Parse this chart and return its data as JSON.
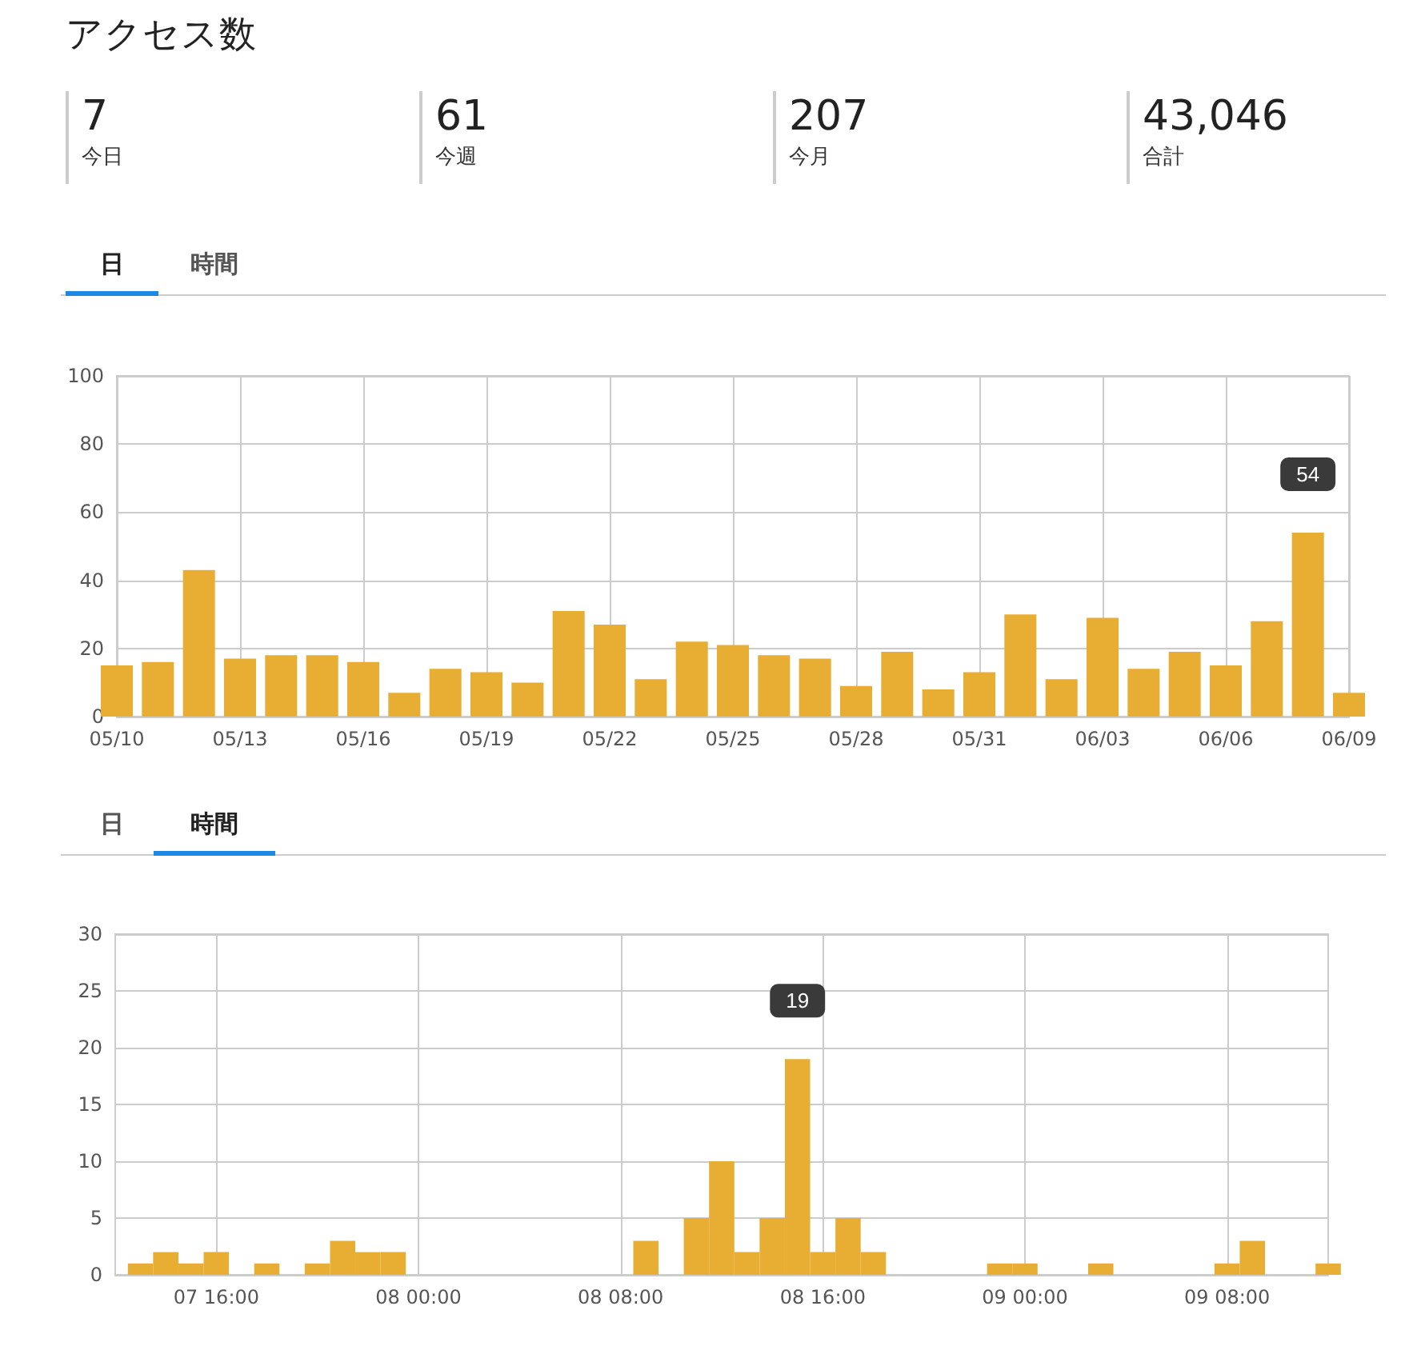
{
  "chart_data": [
    {
      "type": "other",
      "title": "アクセス数",
      "categories": [
        "今日",
        "今週",
        "今月",
        "合計"
      ],
      "value_labels": [
        "7",
        "61",
        "207",
        "43,046"
      ]
    },
    {
      "type": "bar",
      "annotations": [
        "日",
        "時間"
      ],
      "color": "#e8ae33",
      "grid": true,
      "categories": [
        "05/10",
        null,
        null,
        "05/13",
        null,
        null,
        "05/16",
        null,
        null,
        "05/19",
        null,
        null,
        "05/22",
        null,
        null,
        "05/25",
        null,
        null,
        "05/28",
        null,
        null,
        "05/31",
        null,
        null,
        "06/03",
        null,
        null,
        "06/06",
        null,
        null,
        "06/09"
      ],
      "values": [
        15,
        16,
        43,
        17,
        18,
        18,
        16,
        7,
        14,
        13,
        10,
        31,
        27,
        11,
        22,
        21,
        18,
        17,
        9,
        19,
        8,
        13,
        30,
        11,
        29,
        14,
        19,
        15,
        28,
        54,
        7
      ],
      "value_labels": [
        null,
        null,
        null,
        null,
        null,
        null,
        null,
        null,
        null,
        null,
        null,
        null,
        null,
        null,
        null,
        null,
        null,
        null,
        null,
        null,
        null,
        null,
        null,
        null,
        null,
        null,
        null,
        null,
        null,
        "54",
        null
      ],
      "ylim": [
        0,
        100
      ],
      "yticks": [
        0,
        20,
        40,
        60,
        80,
        100
      ]
    },
    {
      "type": "bar",
      "annotations": [
        "日",
        "時間"
      ],
      "color": "#e8ae33",
      "grid": true,
      "x": [
        "--06-07T13:00",
        "--06-07T14:00",
        "--06-07T15:00",
        "--06-07T16:00",
        "--06-07T18:00",
        "--06-07T20:00",
        "--06-07T21:00",
        "--06-07T22:00",
        "--06-07T23:00",
        "--06-08T09:00",
        "--06-08T11:00",
        "--06-08T12:00",
        "--06-08T13:00",
        "--06-08T14:00",
        "--06-08T15:00",
        "--06-08T16:00",
        "--06-08T17:00",
        "--06-08T18:00",
        "--06-08T23:00",
        "--06-09T00:00",
        "--06-09T03:00",
        "--06-09T08:00",
        "--06-09T09:00",
        "--06-09T12:00"
      ],
      "values": [
        1,
        2,
        1,
        2,
        1,
        1,
        3,
        2,
        2,
        3,
        5,
        10,
        2,
        5,
        19,
        2,
        5,
        2,
        1,
        1,
        1,
        1,
        3,
        1
      ],
      "value_labels": [
        null,
        null,
        null,
        null,
        null,
        null,
        null,
        null,
        null,
        null,
        null,
        null,
        null,
        null,
        "19",
        null,
        null,
        null,
        null,
        null,
        null,
        null,
        null,
        null
      ],
      "xlim": [
        "--06-07T12:00",
        "--06-09T12:00"
      ],
      "xticks": [
        {
          "value": "--06-07T16:00",
          "label": "07 16:00"
        },
        {
          "value": "--06-08T00:00",
          "label": "08 00:00"
        },
        {
          "value": "--06-08T08:00",
          "label": "08 08:00"
        },
        {
          "value": "--06-08T16:00",
          "label": "08 16:00"
        },
        {
          "value": "--06-09T00:00",
          "label": "09 00:00"
        },
        {
          "value": "--06-09T08:00",
          "label": "09 08:00"
        }
      ],
      "ylim": [
        0,
        30
      ],
      "yticks": [
        0,
        5,
        10,
        15,
        20,
        25,
        30
      ]
    }
  ]
}
